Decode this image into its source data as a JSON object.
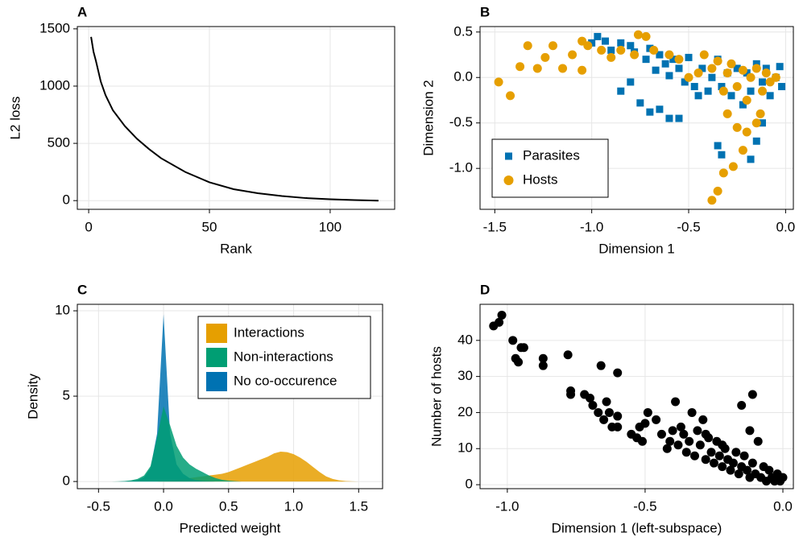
{
  "chart_data": [
    {
      "type": "line",
      "title": "A",
      "xlabel": "Rank",
      "ylabel": "L2 loss",
      "grid": true,
      "color": "#000000",
      "x": [
        1,
        2,
        3,
        5,
        7,
        10,
        15,
        20,
        25,
        30,
        40,
        50,
        60,
        70,
        80,
        90,
        100,
        110,
        120
      ],
      "values": [
        1430,
        1300,
        1220,
        1040,
        920,
        790,
        650,
        540,
        450,
        370,
        250,
        160,
        100,
        65,
        40,
        22,
        12,
        5,
        0
      ],
      "xlim": [
        -4.7,
        126.7
      ],
      "xticks": [
        0,
        50,
        100
      ],
      "ylim": [
        -76,
        1520
      ],
      "yticks": [
        0,
        500,
        1000,
        1500
      ]
    },
    {
      "type": "scatter",
      "title": "B",
      "xlabel": "Dimension 1",
      "ylabel": "Dimension 2",
      "grid": true,
      "legend": "bottom-left",
      "series": [
        {
          "name": "Parasites",
          "color": "#0072b2",
          "marker": "square",
          "x": [
            -1.0,
            -0.97,
            -0.93,
            -0.9,
            -0.85,
            -0.8,
            -0.78,
            -0.72,
            -0.7,
            -0.67,
            -0.65,
            -0.62,
            -0.6,
            -0.58,
            -0.55,
            -0.52,
            -0.5,
            -0.47,
            -0.45,
            -0.43,
            -0.4,
            -0.38,
            -0.35,
            -0.33,
            -0.3,
            -0.28,
            -0.25,
            -0.22,
            -0.2,
            -0.18,
            -0.15,
            -0.12,
            -0.1,
            -0.08,
            -0.05,
            -0.03,
            -0.02,
            -0.65,
            -0.6,
            -0.7,
            -0.35,
            -0.33,
            -0.18,
            -0.15,
            -0.12,
            -0.55,
            -0.8,
            -0.85,
            -0.75
          ],
          "values": [
            0.38,
            0.45,
            0.4,
            0.3,
            0.38,
            0.35,
            0.28,
            0.2,
            0.32,
            0.08,
            0.25,
            0.15,
            0.02,
            0.2,
            0.1,
            -0.05,
            0.22,
            -0.1,
            -0.2,
            0.1,
            -0.15,
            0.0,
            0.2,
            -0.1,
            0.05,
            -0.2,
            0.1,
            -0.3,
            0.05,
            -0.15,
            0.15,
            -0.05,
            0.1,
            -0.2,
            0.0,
            0.12,
            -0.1,
            -0.35,
            -0.45,
            -0.38,
            -0.75,
            -0.85,
            -0.9,
            -0.7,
            -0.5,
            -0.45,
            -0.05,
            -0.15,
            -0.28
          ]
        },
        {
          "name": "Hosts",
          "color": "#e69f00",
          "marker": "circle",
          "x": [
            -1.48,
            -1.42,
            -1.37,
            -1.33,
            -1.28,
            -1.24,
            -1.2,
            -1.15,
            -1.1,
            -1.05,
            -1.05,
            -1.02,
            -0.95,
            -0.9,
            -0.85,
            -0.78,
            -0.76,
            -0.72,
            -0.68,
            -0.6,
            -0.55,
            -0.5,
            -0.45,
            -0.42,
            -0.38,
            -0.35,
            -0.3,
            -0.28,
            -0.25,
            -0.22,
            -0.2,
            -0.18,
            -0.15,
            -0.12,
            -0.1,
            -0.08,
            -0.05,
            -0.3,
            -0.25,
            -0.22,
            -0.27,
            -0.32,
            -0.35,
            -0.38,
            -0.32,
            -0.15,
            -0.2,
            -0.13
          ],
          "values": [
            -0.05,
            -0.2,
            0.12,
            0.35,
            0.1,
            0.22,
            0.35,
            0.1,
            0.25,
            0.08,
            0.4,
            0.35,
            0.3,
            0.22,
            0.3,
            0.25,
            0.47,
            0.45,
            0.3,
            0.25,
            0.2,
            0.0,
            0.05,
            0.25,
            0.1,
            0.18,
            0.05,
            0.15,
            -0.1,
            0.08,
            -0.25,
            0.0,
            0.1,
            -0.15,
            0.05,
            -0.05,
            0.0,
            -0.4,
            -0.55,
            -0.8,
            -0.98,
            -1.05,
            -1.25,
            -1.35,
            -0.15,
            -0.5,
            -0.6,
            -0.4
          ]
        }
      ],
      "xlim": [
        -1.576,
        0.04
      ],
      "xticks": [
        -1.5,
        {
          "value": -1,
          "label": "-1.0"
        },
        -0.5,
        {
          "value": 0,
          "label": "0.0"
        }
      ],
      "ylim": [
        -1.45,
        0.56
      ],
      "yticks": [
        0.5,
        {
          "value": 0,
          "label": "0.0"
        },
        -0.5,
        {
          "value": -1,
          "label": "-1.0"
        }
      ]
    },
    {
      "type": "area",
      "title": "C",
      "xlabel": "Predicted weight",
      "ylabel": "Density",
      "grid": true,
      "legend": "top-right",
      "x": [
        -0.4,
        -0.35,
        -0.3,
        -0.25,
        -0.2,
        -0.15,
        -0.1,
        -0.05,
        0,
        0.05,
        0.1,
        0.15,
        0.2,
        0.25,
        0.3,
        0.35,
        0.4,
        0.45,
        0.5,
        0.55,
        0.6,
        0.65,
        0.7,
        0.75,
        0.8,
        0.85,
        0.9,
        0.95,
        1.0,
        1.05,
        1.1,
        1.15,
        1.2,
        1.25,
        1.3,
        1.35,
        1.4,
        1.45,
        1.5,
        1.55,
        1.6
      ],
      "series": [
        {
          "name": "Interactions",
          "color": "#e69f00",
          "values": [
            0,
            0,
            0,
            0,
            0,
            0,
            0,
            0,
            0.02,
            0.05,
            0.1,
            0.15,
            0.2,
            0.25,
            0.3,
            0.35,
            0.4,
            0.45,
            0.55,
            0.7,
            0.85,
            1.0,
            1.15,
            1.3,
            1.45,
            1.65,
            1.75,
            1.72,
            1.6,
            1.4,
            1.15,
            0.85,
            0.55,
            0.3,
            0.15,
            0.07,
            0.03,
            0.01,
            0,
            0,
            0
          ]
        },
        {
          "name": "Non-interactions",
          "color": "#009e73",
          "values": [
            0,
            0.01,
            0.03,
            0.07,
            0.15,
            0.35,
            0.9,
            2.6,
            4.4,
            3.3,
            2.1,
            1.4,
            1.0,
            0.75,
            0.55,
            0.35,
            0.2,
            0.1,
            0.05,
            0.02,
            0,
            0,
            0,
            0,
            0,
            0,
            0,
            0,
            0,
            0,
            0,
            0,
            0,
            0,
            0,
            0,
            0,
            0,
            0,
            0,
            0
          ]
        },
        {
          "name": "No co-occurence",
          "color": "#0072b2",
          "values": [
            0,
            0,
            0.01,
            0.03,
            0.08,
            0.25,
            0.8,
            2.8,
            9.8,
            2.8,
            1.0,
            0.45,
            0.2,
            0.08,
            0.03,
            0.01,
            0,
            0,
            0,
            0,
            0,
            0,
            0,
            0,
            0,
            0,
            0,
            0,
            0,
            0,
            0,
            0,
            0,
            0,
            0,
            0,
            0,
            0,
            0,
            0,
            0
          ]
        }
      ],
      "xlim": [
        -0.663,
        1.684
      ],
      "xticks": [
        -0.5,
        {
          "value": 0,
          "label": "0.0"
        },
        0.5,
        {
          "value": 1,
          "label": "1.0"
        },
        1.5
      ],
      "ylim": [
        -0.42,
        10.38
      ],
      "yticks": [
        0,
        5,
        10
      ]
    },
    {
      "type": "scatter",
      "title": "D",
      "xlabel": "Dimension 1 (left-subspace)",
      "ylabel": "Number of hosts",
      "grid": true,
      "series": [
        {
          "color": "#000000",
          "marker": "circle",
          "x": [
            -1.05,
            -1.03,
            -1.02,
            -0.98,
            -0.97,
            -0.96,
            -0.95,
            -0.94,
            -0.87,
            -0.87,
            -0.78,
            -0.77,
            -0.77,
            -0.72,
            -0.7,
            -0.69,
            -0.67,
            -0.66,
            -0.65,
            -0.64,
            -0.63,
            -0.62,
            -0.6,
            -0.6,
            -0.6,
            -0.55,
            -0.53,
            -0.52,
            -0.51,
            -0.5,
            -0.49,
            -0.46,
            -0.44,
            -0.42,
            -0.41,
            -0.4,
            -0.39,
            -0.38,
            -0.37,
            -0.36,
            -0.35,
            -0.34,
            -0.33,
            -0.32,
            -0.31,
            -0.3,
            -0.29,
            -0.28,
            -0.27,
            -0.26,
            -0.25,
            -0.24,
            -0.23,
            -0.22,
            -0.21,
            -0.2,
            -0.19,
            -0.18,
            -0.17,
            -0.16,
            -0.15,
            -0.14,
            -0.13,
            -0.12,
            -0.12,
            -0.11,
            -0.1,
            -0.09,
            -0.08,
            -0.07,
            -0.06,
            -0.05,
            -0.04,
            -0.03,
            -0.02,
            -0.01,
            0.0,
            -0.15,
            -0.11,
            -0.22,
            -0.28
          ],
          "values": [
            44,
            45,
            47,
            40,
            35,
            34,
            38,
            38,
            33,
            35,
            36,
            25,
            26,
            25,
            24,
            22,
            20,
            33,
            18,
            23,
            20,
            16,
            31,
            19,
            16,
            14,
            13,
            16,
            12,
            17,
            20,
            18,
            14,
            10,
            12,
            15,
            23,
            11,
            16,
            14,
            9,
            12,
            20,
            8,
            15,
            11,
            18,
            7,
            13,
            9,
            6,
            12,
            8,
            5,
            10,
            7,
            4,
            6,
            9,
            3,
            5,
            8,
            4,
            15,
            2,
            6,
            3,
            12,
            2,
            5,
            1,
            4,
            2,
            1,
            3,
            1,
            2,
            22,
            25,
            11,
            14
          ]
        }
      ],
      "xlim": [
        -1.099,
        0.038
      ],
      "xticks": [
        {
          "value": -1,
          "label": "-1.0"
        },
        -0.5,
        {
          "value": 0,
          "label": "0.0"
        }
      ],
      "ylim": [
        -1.1,
        50
      ],
      "yticks": [
        0,
        10,
        20,
        30,
        40
      ]
    }
  ]
}
